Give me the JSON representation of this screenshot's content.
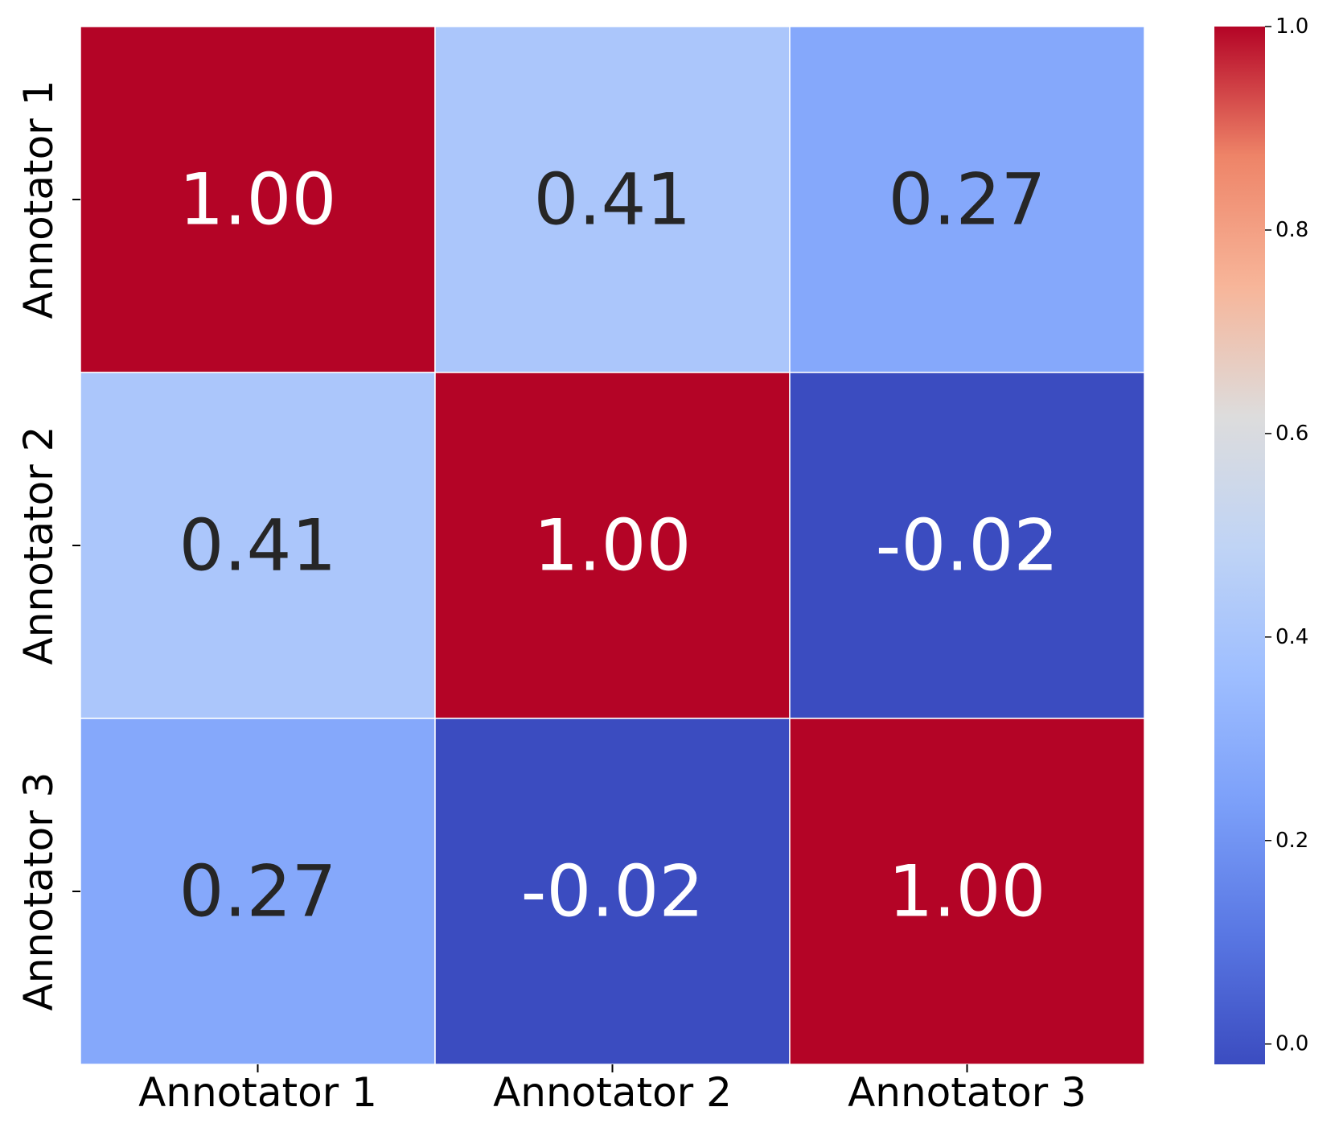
{
  "chart_data": {
    "type": "heatmap",
    "title": "",
    "xlabel": "",
    "ylabel": "",
    "x_categories": [
      "Annotator 1",
      "Annotator 2",
      "Annotator 3"
    ],
    "y_categories": [
      "Annotator 1",
      "Annotator 2",
      "Annotator 3"
    ],
    "values": [
      [
        1.0,
        0.41,
        0.27
      ],
      [
        0.41,
        1.0,
        -0.02
      ],
      [
        0.27,
        -0.02,
        1.0
      ]
    ],
    "value_labels": [
      [
        "1.00",
        "0.41",
        "0.27"
      ],
      [
        "0.41",
        "1.00",
        "-0.02"
      ],
      [
        "0.27",
        "-0.02",
        "1.00"
      ]
    ],
    "colormap": "coolwarm",
    "vmin": -0.02,
    "vmax": 1.0,
    "colorbar": {
      "ticks": [
        0.0,
        0.2,
        0.4,
        0.6,
        0.8,
        1.0
      ],
      "tick_labels": [
        "0.0",
        "0.2",
        "0.4",
        "0.6",
        "0.8",
        "1.0"
      ]
    },
    "grid_lines": true,
    "legend": "colorbar-right"
  }
}
